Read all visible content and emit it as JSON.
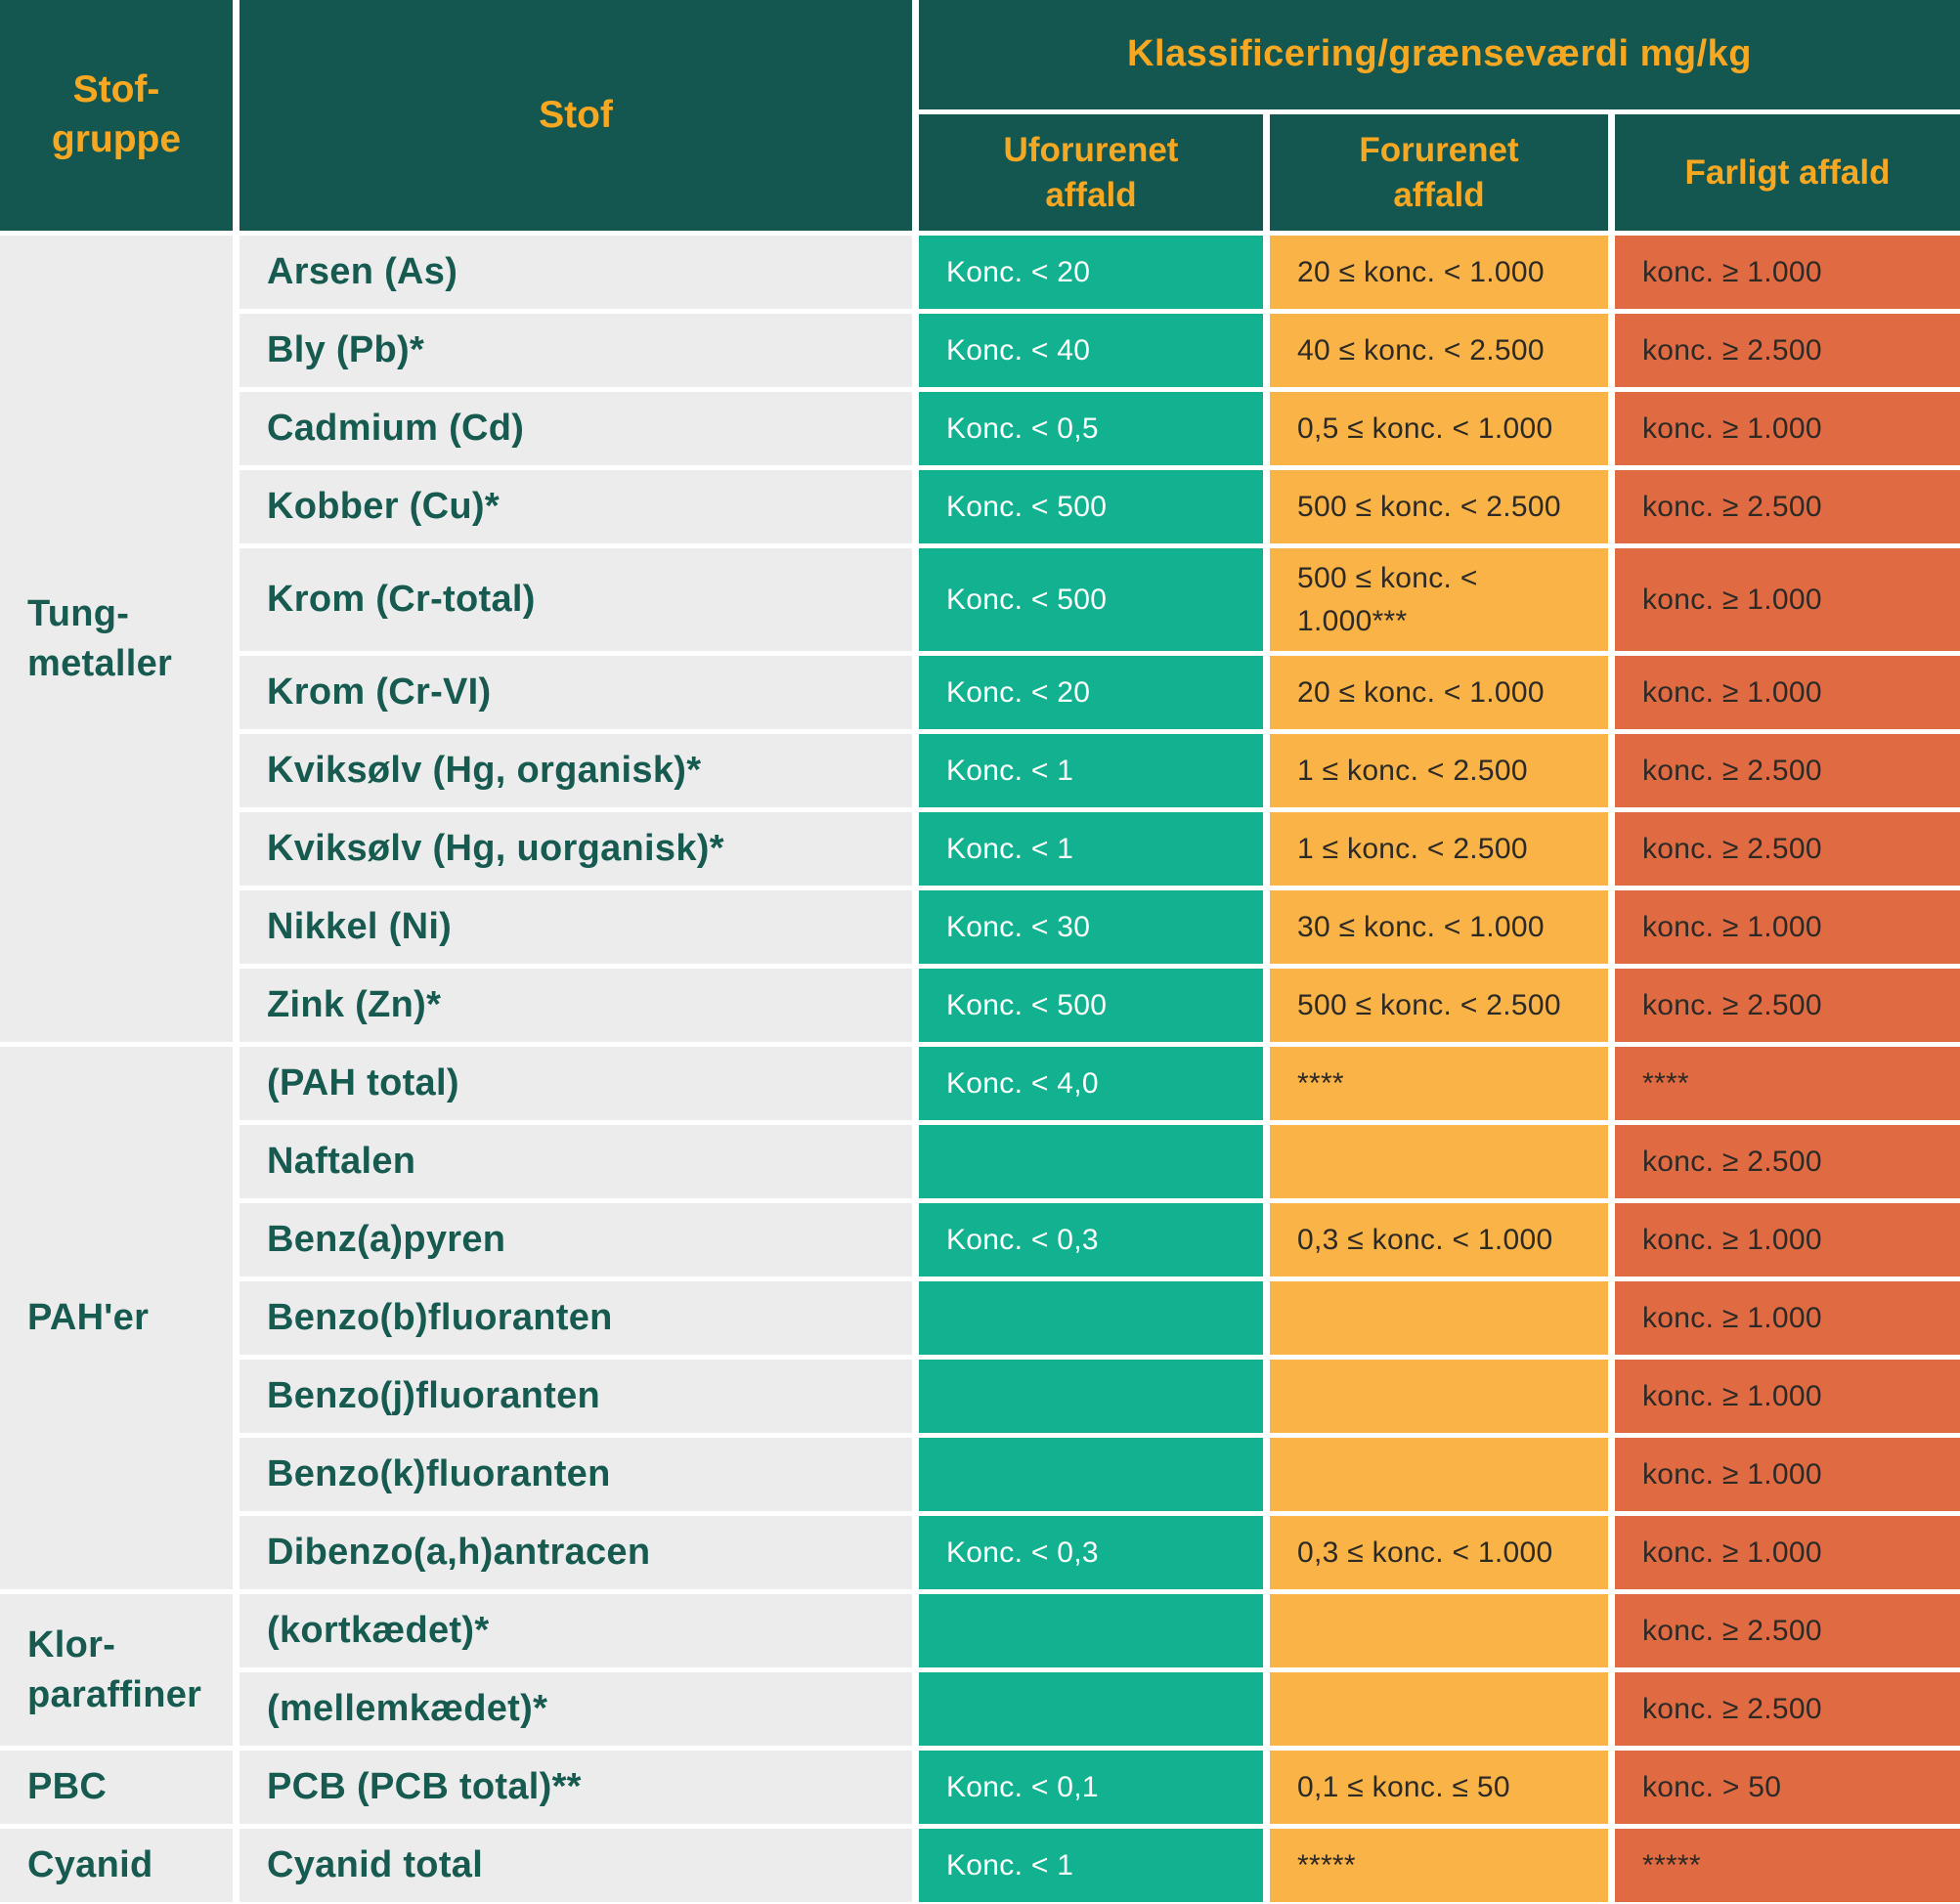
{
  "chart_data": {
    "type": "table",
    "title": "Klassificering/grænseværdi mg/kg",
    "unit": "mg/kg",
    "columns": [
      "Stof-gruppe",
      "Stof",
      "Uforurenet affald",
      "Forurenet affald",
      "Farligt affald"
    ],
    "groups": [
      {
        "label": "Tung-metaller",
        "rows": [
          {
            "substance": "Arsen (As)",
            "uforurenet": "Konc. < 20",
            "forurenet": "20 ≤ konc. < 1.000",
            "farligt": "konc. ≥ 1.000"
          },
          {
            "substance": "Bly (Pb)*",
            "uforurenet": "Konc. < 40",
            "forurenet": "40 ≤ konc. < 2.500",
            "farligt": "konc. ≥ 2.500"
          },
          {
            "substance": "Cadmium (Cd)",
            "uforurenet": "Konc. < 0,5",
            "forurenet": "0,5 ≤ konc. < 1.000",
            "farligt": "konc. ≥ 1.000"
          },
          {
            "substance": "Kobber (Cu)*",
            "uforurenet": "Konc. < 500",
            "forurenet": "500 ≤ konc. < 2.500",
            "farligt": "konc. ≥ 2.500"
          },
          {
            "substance": "Krom (Cr-total)",
            "uforurenet": "Konc. < 500",
            "forurenet": "500 ≤ konc. < 1.000***",
            "farligt": "konc. ≥ 1.000"
          },
          {
            "substance": "Krom (Cr-VI)",
            "uforurenet": "Konc. < 20",
            "forurenet": "20 ≤ konc. < 1.000",
            "farligt": "konc. ≥ 1.000"
          },
          {
            "substance": "Kviksølv (Hg, organisk)*",
            "uforurenet": "Konc. < 1",
            "forurenet": "1 ≤ konc. < 2.500",
            "farligt": "konc. ≥ 2.500"
          },
          {
            "substance": "Kviksølv (Hg, uorganisk)*",
            "uforurenet": "Konc. < 1",
            "forurenet": "1 ≤ konc. < 2.500",
            "farligt": "konc. ≥ 2.500"
          },
          {
            "substance": "Nikkel (Ni)",
            "uforurenet": "Konc. < 30",
            "forurenet": "30 ≤ konc. < 1.000",
            "farligt": "konc. ≥ 1.000"
          },
          {
            "substance": "Zink (Zn)*",
            "uforurenet": "Konc. < 500",
            "forurenet": "500 ≤ konc. < 2.500",
            "farligt": "konc. ≥ 2.500"
          }
        ]
      },
      {
        "label": "PAH'er",
        "rows": [
          {
            "substance": "(PAH total)",
            "uforurenet": "Konc. < 4,0",
            "forurenet": "****",
            "farligt": "****"
          },
          {
            "substance": "Naftalen",
            "uforurenet": "",
            "forurenet": "",
            "farligt": "konc. ≥ 2.500"
          },
          {
            "substance": "Benz(a)pyren",
            "uforurenet": "Konc. < 0,3",
            "forurenet": "0,3 ≤ konc. < 1.000",
            "farligt": "konc. ≥ 1.000"
          },
          {
            "substance": "Benzo(b)fluoranten",
            "uforurenet": "",
            "forurenet": "",
            "farligt": "konc. ≥ 1.000"
          },
          {
            "substance": "Benzo(j)fluoranten",
            "uforurenet": "",
            "forurenet": "",
            "farligt": "konc. ≥ 1.000"
          },
          {
            "substance": "Benzo(k)fluoranten",
            "uforurenet": "",
            "forurenet": "",
            "farligt": "konc. ≥ 1.000"
          },
          {
            "substance": "Dibenzo(a,h)antracen",
            "uforurenet": "Konc. < 0,3",
            "forurenet": "0,3 ≤ konc. < 1.000",
            "farligt": "konc. ≥ 1.000"
          }
        ]
      },
      {
        "label": "Klor-paraffiner",
        "rows": [
          {
            "substance": "(kortkædet)*",
            "uforurenet": "",
            "forurenet": "",
            "farligt": "konc. ≥ 2.500"
          },
          {
            "substance": "(mellemkædet)*",
            "uforurenet": "",
            "forurenet": "",
            "farligt": "konc. ≥ 2.500"
          }
        ]
      },
      {
        "label": "PBC",
        "rows": [
          {
            "substance": "PCB (PCB total)**",
            "uforurenet": "Konc. < 0,1",
            "forurenet": "0,1 ≤ konc. ≤ 50",
            "farligt": "konc. > 50"
          }
        ]
      },
      {
        "label": "Cyanid",
        "rows": [
          {
            "substance": "Cyanid total",
            "uforurenet": "Konc. < 1",
            "forurenet": "*****",
            "farligt": "*****"
          }
        ]
      }
    ]
  },
  "colors": {
    "header_background": "#145751",
    "header_text": "#F7A823",
    "row_background": "#ECECEC",
    "row_text": "#175A50",
    "uforurenet_cell": "#12B290",
    "forurenet_cell": "#F9B347",
    "farligt_cell": "#E06B43",
    "value_text_dark": "#2D2A26",
    "value_text_light": "#FFFFFF"
  }
}
